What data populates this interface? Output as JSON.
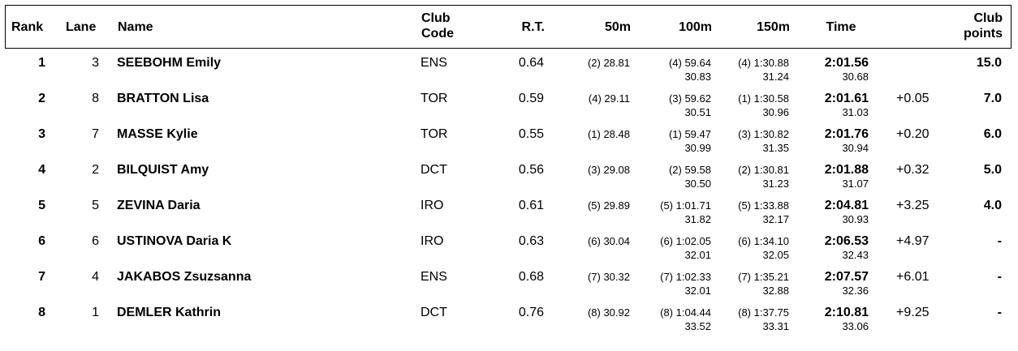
{
  "headers": {
    "rank": "Rank",
    "lane": "Lane",
    "name": "Name",
    "club_code_1": "Club",
    "club_code_2": "Code",
    "rt": "R.T.",
    "m50": "50m",
    "m100": "100m",
    "m150": "150m",
    "time": "Time",
    "club_points_1": "Club",
    "club_points_2": "points"
  },
  "rows": [
    {
      "rank": "1",
      "lane": "3",
      "name": "SEEBOHM Emily",
      "club": "ENS",
      "rt": "0.64",
      "s50": "(2) 28.81",
      "s100": "(4) 59.64",
      "s150": "(4) 1:30.88",
      "time": "2:01.56",
      "diff": "",
      "points": "15.0",
      "sp100": "30.83",
      "sp150": "31.24",
      "sptime": "30.68"
    },
    {
      "rank": "2",
      "lane": "8",
      "name": "BRATTON Lisa",
      "club": "TOR",
      "rt": "0.59",
      "s50": "(4) 29.11",
      "s100": "(3) 59.62",
      "s150": "(1) 1:30.58",
      "time": "2:01.61",
      "diff": "+0.05",
      "points": "7.0",
      "sp100": "30.51",
      "sp150": "30.96",
      "sptime": "31.03"
    },
    {
      "rank": "3",
      "lane": "7",
      "name": "MASSE Kylie",
      "club": "TOR",
      "rt": "0.55",
      "s50": "(1) 28.48",
      "s100": "(1) 59.47",
      "s150": "(3) 1:30.82",
      "time": "2:01.76",
      "diff": "+0.20",
      "points": "6.0",
      "sp100": "30.99",
      "sp150": "31.35",
      "sptime": "30.94"
    },
    {
      "rank": "4",
      "lane": "2",
      "name": "BILQUIST Amy",
      "club": "DCT",
      "rt": "0.56",
      "s50": "(3) 29.08",
      "s100": "(2) 59.58",
      "s150": "(2) 1:30.81",
      "time": "2:01.88",
      "diff": "+0.32",
      "points": "5.0",
      "sp100": "30.50",
      "sp150": "31.23",
      "sptime": "31.07"
    },
    {
      "rank": "5",
      "lane": "5",
      "name": "ZEVINA Daria",
      "club": "IRO",
      "rt": "0.61",
      "s50": "(5) 29.89",
      "s100": "(5) 1:01.71",
      "s150": "(5) 1:33.88",
      "time": "2:04.81",
      "diff": "+3.25",
      "points": "4.0",
      "sp100": "31.82",
      "sp150": "32.17",
      "sptime": "30.93"
    },
    {
      "rank": "6",
      "lane": "6",
      "name": "USTINOVA Daria K",
      "club": "IRO",
      "rt": "0.63",
      "s50": "(6) 30.04",
      "s100": "(6) 1:02.05",
      "s150": "(6) 1:34.10",
      "time": "2:06.53",
      "diff": "+4.97",
      "points": "-",
      "sp100": "32.01",
      "sp150": "32.05",
      "sptime": "32.43"
    },
    {
      "rank": "7",
      "lane": "4",
      "name": "JAKABOS Zsuzsanna",
      "club": "ENS",
      "rt": "0.68",
      "s50": "(7) 30.32",
      "s100": "(7) 1:02.33",
      "s150": "(7) 1:35.21",
      "time": "2:07.57",
      "diff": "+6.01",
      "points": "-",
      "sp100": "32.01",
      "sp150": "32.88",
      "sptime": "32.36"
    },
    {
      "rank": "8",
      "lane": "1",
      "name": "DEMLER Kathrin",
      "club": "DCT",
      "rt": "0.76",
      "s50": "(8) 30.92",
      "s100": "(8) 1:04.44",
      "s150": "(8) 1:37.75",
      "time": "2:10.81",
      "diff": "+9.25",
      "points": "-",
      "sp100": "33.52",
      "sp150": "33.31",
      "sptime": "33.06"
    }
  ]
}
